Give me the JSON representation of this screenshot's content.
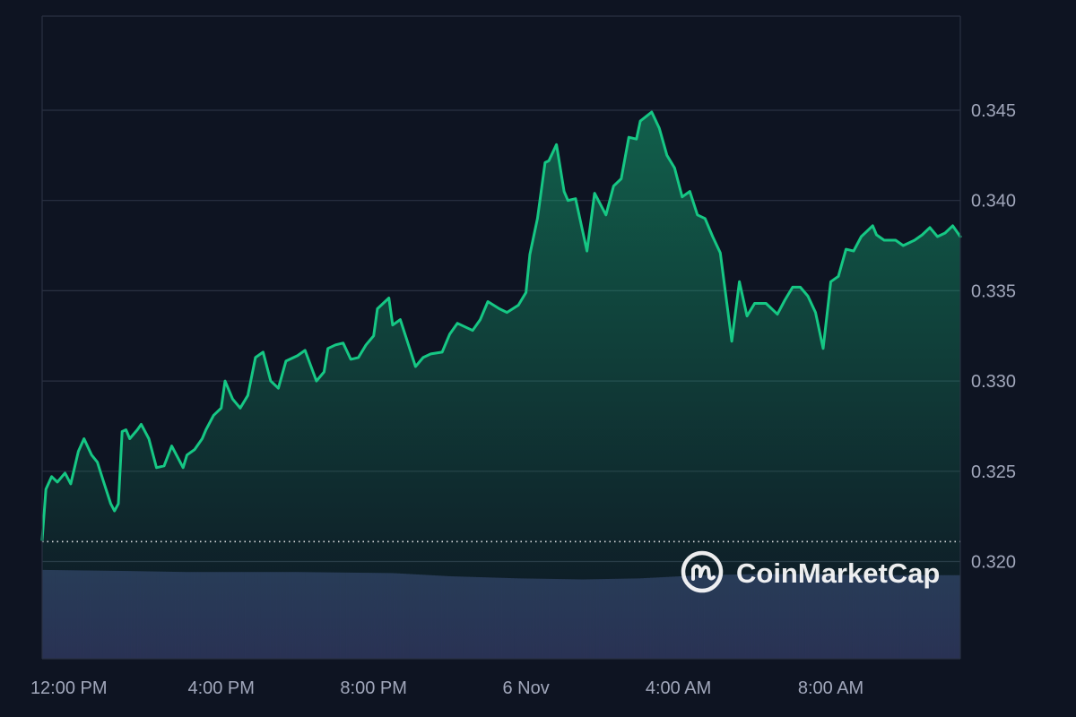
{
  "watermark": {
    "text": "CoinMarketCap",
    "icon": "coinmarketcap-logo-icon"
  },
  "colors": {
    "background": "#0e1422",
    "line": "#16c784",
    "area_top": "#16c784",
    "grid": "#2a3142",
    "volume": "#2b3457",
    "baseline": "#ffffff",
    "axis_text": "#a1a7bb"
  },
  "chart_data": {
    "type": "area",
    "title": "",
    "xlabel": "",
    "ylabel": "",
    "ylim": [
      0.315,
      0.35
    ],
    "grid": true,
    "legend": "none",
    "y_ticks": [
      "0.320",
      "0.325",
      "0.330",
      "0.335",
      "0.340",
      "0.345"
    ],
    "x_ticks": [
      "12:00 PM",
      "4:00 PM",
      "8:00 PM",
      "6 Nov",
      "4:00 AM",
      "8:00 AM"
    ],
    "x_tick_hours": [
      0,
      4,
      8,
      12,
      16,
      20
    ],
    "x_range_hours": [
      -0.7,
      23.4
    ],
    "baseline_value": 0.3211,
    "series": [
      {
        "hours": [
          -0.7,
          -0.6,
          -0.45,
          -0.3,
          -0.1,
          0.05,
          0.25,
          0.4,
          0.6,
          0.75,
          0.9,
          1.1,
          1.2,
          1.3,
          1.4,
          1.5,
          1.6,
          1.8,
          1.9,
          2.1,
          2.3,
          2.5,
          2.7,
          3.0,
          3.1,
          3.3,
          3.5,
          3.6,
          3.8,
          4.0,
          4.1,
          4.3,
          4.5,
          4.7,
          4.9,
          5.1,
          5.3,
          5.5,
          5.7,
          5.9,
          6.0,
          6.2,
          6.5,
          6.7,
          6.8,
          7.0,
          7.2,
          7.4,
          7.6,
          7.8,
          8.0,
          8.1,
          8.4,
          8.5,
          8.7,
          8.9,
          9.1,
          9.3,
          9.5,
          9.8,
          10.0,
          10.2,
          10.4,
          10.6,
          10.8,
          11.0,
          11.3,
          11.5,
          11.8,
          12.0,
          12.1,
          12.3,
          12.5,
          12.6,
          12.8,
          13.0,
          13.1,
          13.3,
          13.6,
          13.8,
          14.1,
          14.3,
          14.5,
          14.7,
          14.9,
          15.0,
          15.3,
          15.5,
          15.7,
          15.9,
          16.1,
          16.3,
          16.5,
          16.7,
          16.9,
          17.1,
          17.4,
          17.6,
          17.8,
          18.0,
          18.3,
          18.6,
          18.8,
          19.0,
          19.2,
          19.4,
          19.6,
          19.8,
          20.0,
          20.2,
          20.4,
          20.6,
          20.8,
          21.1,
          21.2,
          21.4,
          21.7,
          21.9,
          22.2,
          22.4,
          22.6,
          22.8,
          23.0,
          23.2,
          23.4
        ],
        "values": [
          0.3212,
          0.324,
          0.3247,
          0.3244,
          0.3249,
          0.3243,
          0.3261,
          0.3268,
          0.3259,
          0.3255,
          0.3245,
          0.3232,
          0.3228,
          0.3232,
          0.3272,
          0.3273,
          0.3268,
          0.3273,
          0.3276,
          0.3268,
          0.3252,
          0.3253,
          0.3264,
          0.3252,
          0.3259,
          0.3262,
          0.3268,
          0.3273,
          0.3281,
          0.3285,
          0.33,
          0.329,
          0.3285,
          0.3292,
          0.3313,
          0.3316,
          0.33,
          0.3296,
          0.3311,
          0.3313,
          0.3314,
          0.3317,
          0.33,
          0.3305,
          0.3318,
          0.332,
          0.3321,
          0.3312,
          0.3313,
          0.332,
          0.3325,
          0.334,
          0.3346,
          0.3331,
          0.3334,
          0.3321,
          0.3308,
          0.3313,
          0.3315,
          0.3316,
          0.3326,
          0.3332,
          0.333,
          0.3328,
          0.3334,
          0.3344,
          0.334,
          0.3338,
          0.3342,
          0.3349,
          0.337,
          0.339,
          0.3421,
          0.3422,
          0.3431,
          0.3405,
          0.34,
          0.3401,
          0.3372,
          0.3404,
          0.3392,
          0.3408,
          0.3412,
          0.3435,
          0.3434,
          0.3444,
          0.3449,
          0.344,
          0.3425,
          0.3418,
          0.3402,
          0.3405,
          0.3392,
          0.339,
          0.338,
          0.3371,
          0.3322,
          0.3355,
          0.3336,
          0.3343,
          0.3343,
          0.3337,
          0.3345,
          0.3352,
          0.3352,
          0.3347,
          0.3338,
          0.3318,
          0.3355,
          0.3358,
          0.3373,
          0.3372,
          0.338,
          0.3386,
          0.3381,
          0.3378,
          0.3378,
          0.3375,
          0.3378,
          0.3381,
          0.3385,
          0.338,
          0.3382,
          0.3386,
          0.338
        ]
      }
    ],
    "volume": {
      "hours": [
        -0.7,
        1.5,
        3.1,
        6.0,
        8.5,
        10.0,
        11.8,
        13.5,
        15.0,
        16.6,
        18.0,
        19.5,
        21.0,
        23.4
      ],
      "relative": [
        0.84,
        0.83,
        0.82,
        0.82,
        0.81,
        0.78,
        0.76,
        0.75,
        0.76,
        0.79,
        0.8,
        0.8,
        0.79,
        0.79
      ]
    }
  }
}
